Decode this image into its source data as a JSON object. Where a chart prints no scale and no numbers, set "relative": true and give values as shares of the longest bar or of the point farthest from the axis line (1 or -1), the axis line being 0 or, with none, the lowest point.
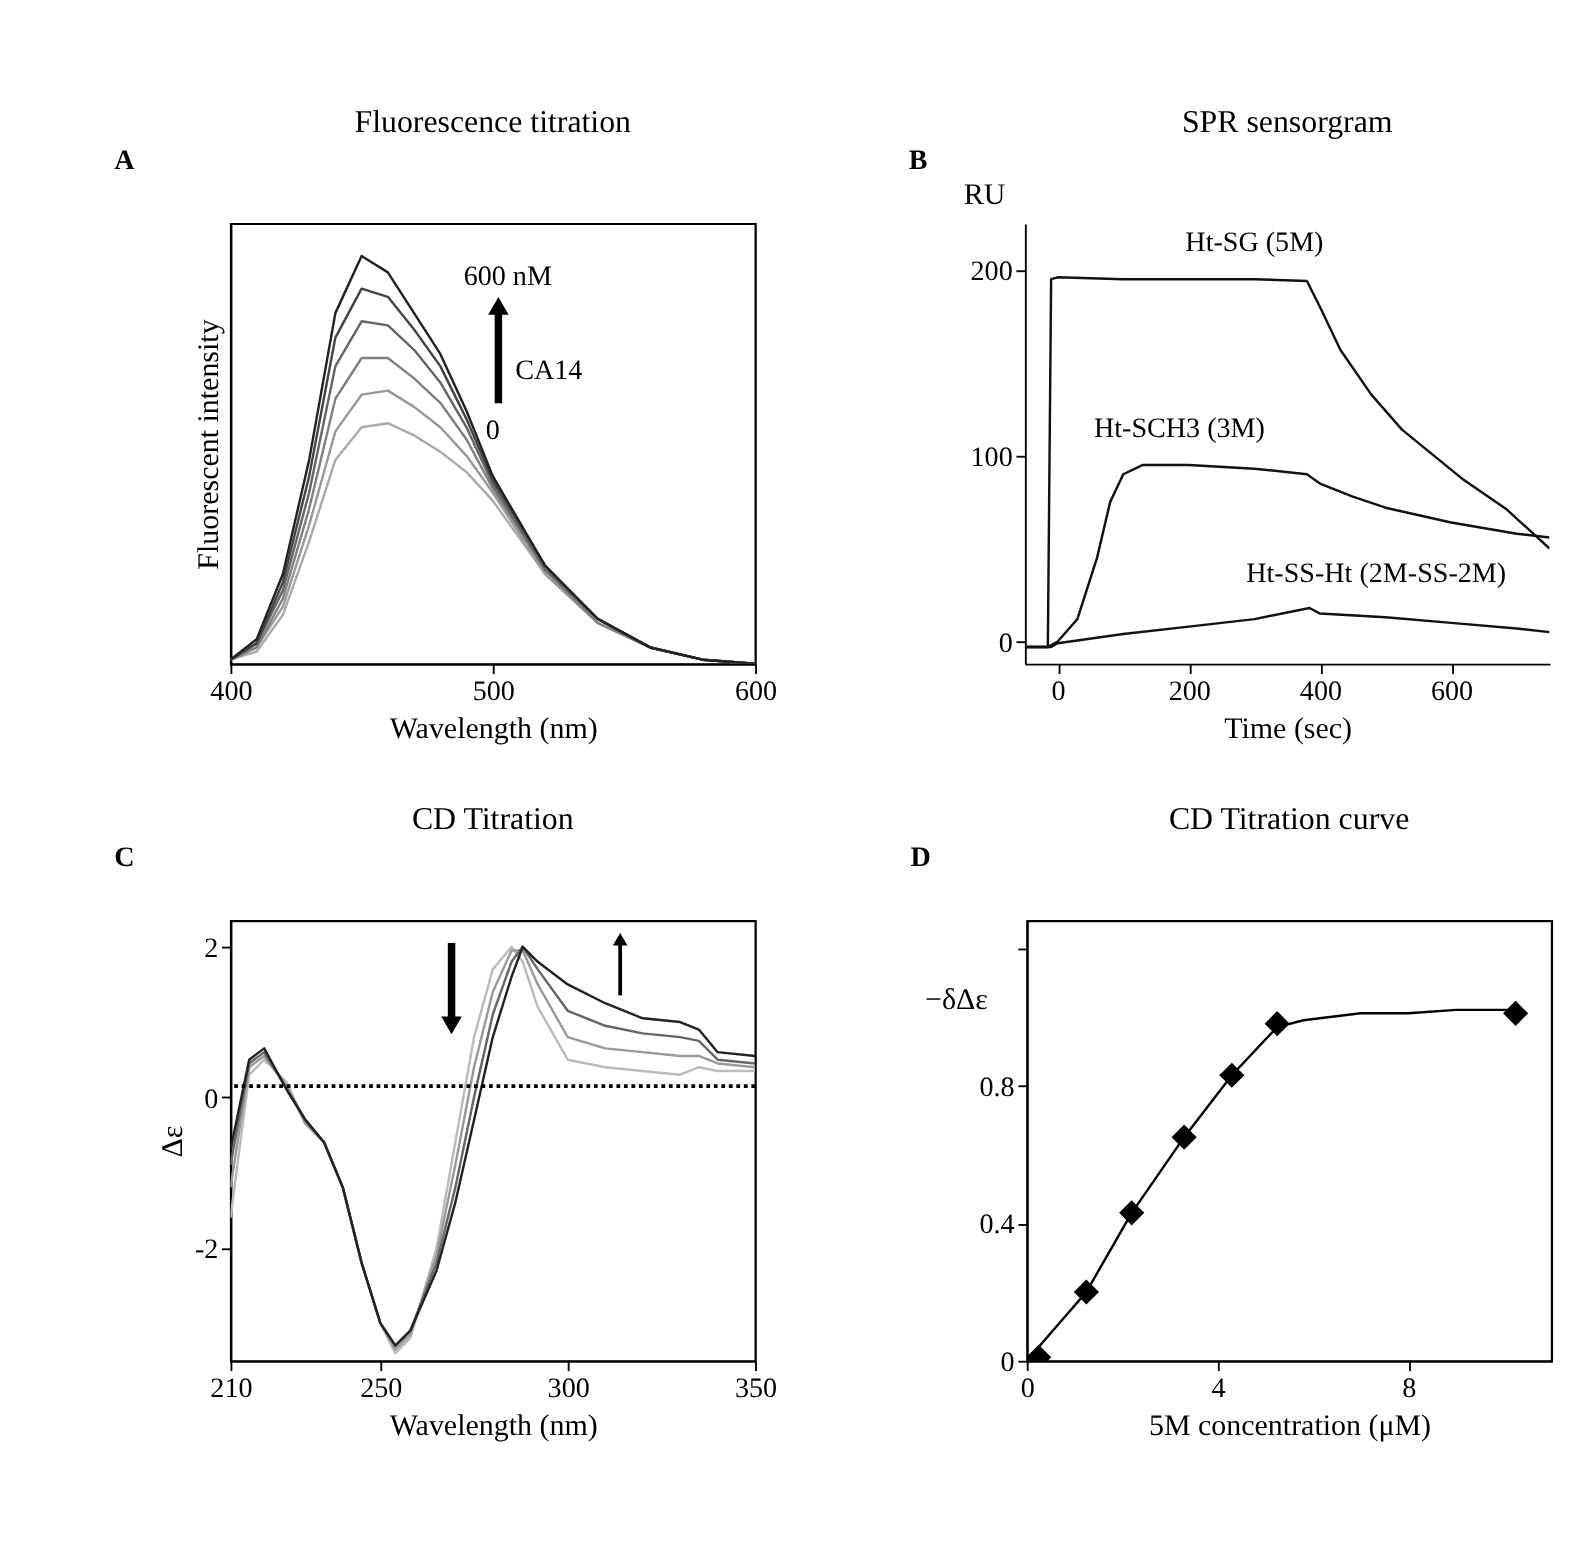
{
  "chart_data": [
    {
      "type": "line",
      "title": "Fluorescence titration",
      "xlabel": "Wavelength (nm)",
      "ylabel": "Fluorescent intensity",
      "relative": true,
      "xlim": [
        400,
        600
      ],
      "xticks": [
        400,
        500,
        600
      ],
      "grid": false,
      "line_style": "solid",
      "tick_labels": "x",
      "x": [
        400,
        410,
        420,
        430,
        440,
        450,
        460,
        470,
        480,
        490,
        500,
        520,
        540,
        560,
        580,
        600
      ],
      "annotations": [
        "A",
        "600 nM",
        "CA14",
        "0"
      ],
      "series": [
        {
          "color": "#aaaaaa",
          "values": [
            0.01,
            0.03,
            0.12,
            0.3,
            0.5,
            0.58,
            0.59,
            0.56,
            0.52,
            0.47,
            0.4,
            0.22,
            0.1,
            0.04,
            0.01,
            0.0
          ]
        },
        {
          "color": "#999999",
          "values": [
            0.01,
            0.04,
            0.14,
            0.34,
            0.57,
            0.66,
            0.67,
            0.63,
            0.58,
            0.51,
            0.42,
            0.22,
            0.1,
            0.04,
            0.01,
            0.0
          ]
        },
        {
          "color": "#808080",
          "values": [
            0.01,
            0.04,
            0.16,
            0.38,
            0.65,
            0.75,
            0.75,
            0.7,
            0.64,
            0.55,
            0.43,
            0.23,
            0.1,
            0.04,
            0.01,
            0.0
          ]
        },
        {
          "color": "#666666",
          "values": [
            0.01,
            0.05,
            0.18,
            0.42,
            0.73,
            0.84,
            0.83,
            0.77,
            0.69,
            0.58,
            0.44,
            0.23,
            0.11,
            0.04,
            0.01,
            0.0
          ]
        },
        {
          "color": "#444444",
          "values": [
            0.01,
            0.05,
            0.2,
            0.46,
            0.8,
            0.92,
            0.9,
            0.82,
            0.73,
            0.6,
            0.45,
            0.24,
            0.11,
            0.04,
            0.01,
            0.0
          ]
        },
        {
          "color": "#222222",
          "values": [
            0.01,
            0.06,
            0.22,
            0.5,
            0.86,
            1.0,
            0.96,
            0.86,
            0.76,
            0.62,
            0.46,
            0.24,
            0.11,
            0.04,
            0.01,
            0.0
          ]
        }
      ]
    },
    {
      "type": "line",
      "title": "SPR sensorgram",
      "xlabel": "Time (sec)",
      "ylabel": "RU",
      "xlim": [
        -50,
        750
      ],
      "xticks": [
        0,
        200,
        400,
        600
      ],
      "ylim": [
        -12,
        225
      ],
      "yticks": [
        0,
        100,
        200
      ],
      "grid": false,
      "line_style": "solid",
      "annotations": [
        "B"
      ],
      "series": [
        {
          "name": "Ht-SG (5M)",
          "color": "#111111",
          "x": [
            -50,
            -15,
            -10,
            0,
            100,
            200,
            300,
            380,
            400,
            431,
            478,
            525,
            619,
            685,
            750
          ],
          "values": [
            -3,
            -3,
            195,
            196,
            195,
            195,
            195,
            194,
            180,
            157,
            133,
            114,
            87,
            71,
            50
          ]
        },
        {
          "name": "Ht-SCH3 (3M)",
          "color": "#111111",
          "x": [
            -50,
            -15,
            0,
            30,
            60,
            80,
            100,
            130,
            200,
            300,
            380,
            400,
            450,
            500,
            600,
            700,
            750
          ],
          "values": [
            -3,
            -3,
            0,
            12,
            45,
            75,
            90,
            95,
            95,
            93,
            90,
            85,
            78,
            72,
            64,
            58,
            56
          ]
        },
        {
          "name": "Ht-SS-Ht (2M-SS-2M)",
          "color": "#111111",
          "x": [
            -50,
            -10,
            0,
            100,
            200,
            300,
            384,
            400,
            500,
            600,
            700,
            750
          ],
          "values": [
            -3,
            -3,
            -1,
            4,
            8,
            12,
            18,
            15,
            13,
            10,
            7,
            5
          ]
        }
      ]
    },
    {
      "type": "line",
      "title": "CD Titration",
      "xlabel": "Wavelength (nm)",
      "ylabel": "Δε",
      "xlim": [
        210,
        350
      ],
      "xticks": [
        210,
        250,
        300,
        350
      ],
      "ylim": [
        -3.5,
        2.35
      ],
      "yticks": [
        -2,
        0,
        2
      ],
      "grid": false,
      "line_style": "solid",
      "x": [
        210,
        215,
        219,
        225,
        230,
        235,
        240,
        245,
        250,
        254,
        258,
        265,
        270,
        275,
        280,
        285,
        288,
        292,
        300,
        310,
        320,
        330,
        335,
        340,
        350
      ],
      "ref_lines": [
        {
          "axis": "y",
          "value": 0.15,
          "line_style": "dotted",
          "color": "#000000"
        }
      ],
      "annotations": [
        "C"
      ],
      "series": [
        {
          "color": "#bbbbbb",
          "values": [
            -1.6,
            0.3,
            0.5,
            0.2,
            -0.35,
            -0.6,
            -1.2,
            -2.2,
            -3.0,
            -3.4,
            -3.2,
            -2.0,
            -0.6,
            0.8,
            1.7,
            2.0,
            1.8,
            1.2,
            0.5,
            0.4,
            0.35,
            0.3,
            0.4,
            0.35,
            0.35
          ]
        },
        {
          "color": "#999999",
          "values": [
            -1.2,
            0.4,
            0.55,
            0.15,
            -0.35,
            -0.6,
            -1.2,
            -2.2,
            -3.0,
            -3.35,
            -3.15,
            -2.1,
            -0.9,
            0.4,
            1.4,
            1.95,
            1.95,
            1.5,
            0.8,
            0.65,
            0.6,
            0.55,
            0.55,
            0.45,
            0.4
          ]
        },
        {
          "color": "#666666",
          "values": [
            -0.9,
            0.45,
            0.6,
            0.12,
            -0.3,
            -0.6,
            -1.2,
            -2.2,
            -3.0,
            -3.3,
            -3.1,
            -2.2,
            -1.2,
            0.0,
            1.1,
            1.8,
            2.0,
            1.7,
            1.15,
            0.95,
            0.85,
            0.8,
            0.75,
            0.5,
            0.45
          ]
        },
        {
          "color": "#222222",
          "values": [
            -0.7,
            0.5,
            0.65,
            0.1,
            -0.3,
            -0.6,
            -1.2,
            -2.2,
            -3.0,
            -3.3,
            -3.1,
            -2.3,
            -1.4,
            -0.3,
            0.8,
            1.6,
            2.0,
            1.8,
            1.5,
            1.25,
            1.05,
            1.0,
            0.9,
            0.6,
            0.55
          ]
        }
      ]
    },
    {
      "type": "scatter",
      "title": "CD Titration curve",
      "xlabel": "5M concentration (μM)",
      "ylabel": "−δΔε",
      "xlim": [
        0,
        11
      ],
      "xticks": [
        0,
        4,
        8
      ],
      "ylim": [
        0,
        1.28
      ],
      "yticks": [
        0,
        0.4,
        0.8,
        {
          "value": 1.2,
          "label": null
        }
      ],
      "grid": false,
      "annotations": [
        "D"
      ],
      "series": [
        {
          "type": "line",
          "color": "#000000",
          "line_style": "solid",
          "marker": "none",
          "x": [
            0,
            1.25,
            2.2,
            3.3,
            4.3,
            5.25,
            5.8,
            7,
            8,
            9,
            10.25
          ],
          "values": [
            0,
            0.2,
            0.43,
            0.65,
            0.83,
            0.97,
            0.99,
            1.01,
            1.01,
            1.02,
            1.02
          ]
        },
        {
          "color": "#000000",
          "marker": "diamond",
          "x": [
            0.25,
            1.25,
            2.2,
            3.3,
            4.3,
            5.25,
            10.25
          ],
          "values": [
            0.01,
            0.2,
            0.43,
            0.65,
            0.83,
            0.98,
            1.01
          ]
        }
      ]
    }
  ]
}
